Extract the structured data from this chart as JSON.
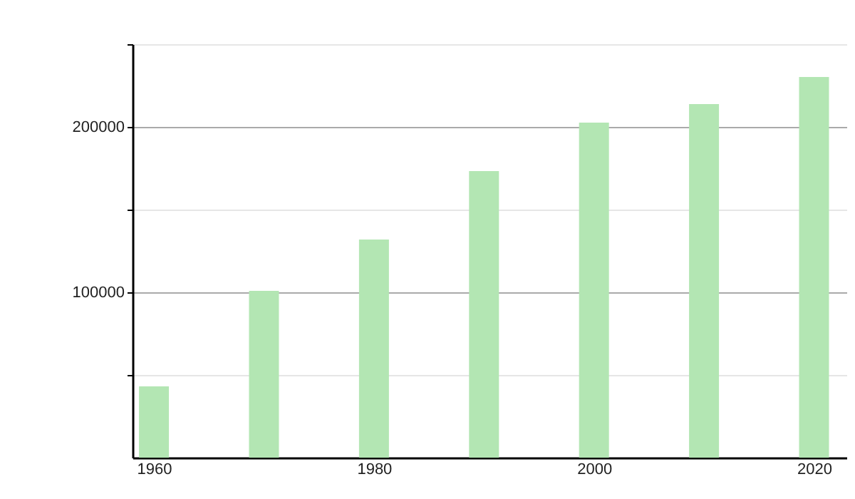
{
  "chart_data": {
    "type": "bar",
    "x": [
      1960,
      1970,
      1980,
      1990,
      2000,
      2010,
      2020
    ],
    "values": [
      43100,
      100900,
      131900,
      173300,
      202600,
      213800,
      230200
    ],
    "color": "#b3e6b3",
    "xlim": [
      1958.7,
      2022.3
    ],
    "xticks": [
      1960,
      1980,
      2000,
      2020
    ],
    "ylim": [
      0,
      250000
    ],
    "yticks": [
      {
        "value": 50000,
        "label": null
      },
      100000,
      {
        "value": 150000,
        "label": null
      },
      200000,
      {
        "value": 250000,
        "label": null
      }
    ],
    "grid": "y"
  }
}
